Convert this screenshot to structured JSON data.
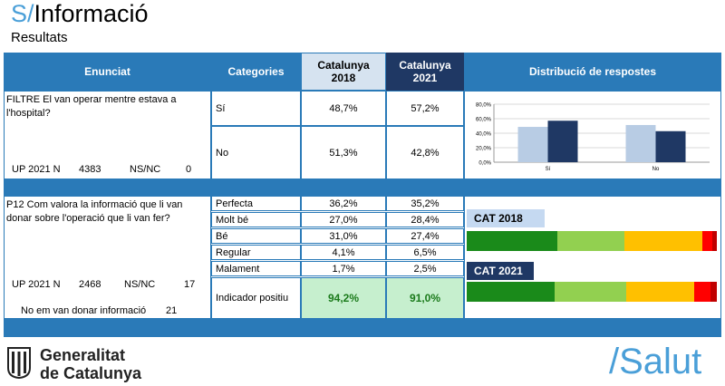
{
  "header": {
    "title_prefix": "S/",
    "title": "Informació",
    "subtitle": "Resultats"
  },
  "table": {
    "headers": {
      "enunciat": "Enunciat",
      "categories": "Categories",
      "col2018": "Catalunya 2018",
      "col2021": "Catalunya 2021",
      "distribucio": "Distribució de respostes"
    },
    "q1": {
      "question": "FILTRE El van operar mentre estava a l'hospital?",
      "up_label": "UP 2021 N",
      "up_value": "4383",
      "nsnc_label": "NS/NC",
      "nsnc_value": "0",
      "rows": [
        {
          "label": "Sí",
          "v2018": "48,7%",
          "v2021": "57,2%"
        },
        {
          "label": "No",
          "v2018": "51,3%",
          "v2021": "42,8%"
        }
      ]
    },
    "q2": {
      "question": "P12 Com valora la informació que li van donar sobre l'operació que li van fer?",
      "up_label": "UP 2021 N",
      "up_value": "2468",
      "nsnc_label": "NS/NC",
      "nsnc_value": "17",
      "extra_label": "No em van donar informació",
      "extra_value": "21",
      "rows": [
        {
          "label": "Perfecta",
          "v2018": "36,2%",
          "v2021": "35,2%"
        },
        {
          "label": "Molt bé",
          "v2018": "27,0%",
          "v2021": "28,4%"
        },
        {
          "label": "Bé",
          "v2018": "31,0%",
          "v2021": "27,4%"
        },
        {
          "label": "Regular",
          "v2018": "4,1%",
          "v2021": "6,5%"
        },
        {
          "label": "Malament",
          "v2018": "1,7%",
          "v2021": "2,5%"
        }
      ],
      "indicator": {
        "label": "Indicador positiu",
        "v2018": "94,2%",
        "v2021": "91,0%"
      }
    }
  },
  "chart_data": [
    {
      "type": "bar",
      "title": "",
      "categories": [
        "Sí",
        "No"
      ],
      "series": [
        {
          "name": "Catalunya 2018",
          "values": [
            48.7,
            51.3
          ],
          "color": "#b8cce4"
        },
        {
          "name": "Catalunya 2021",
          "values": [
            57.2,
            42.8
          ],
          "color": "#1f3864"
        }
      ],
      "ylim": [
        0,
        80
      ],
      "yticks": [
        "0,0%",
        "20,0%",
        "40,0%",
        "60,0%",
        "80,0%"
      ],
      "xlabel": "",
      "ylabel": ""
    },
    {
      "type": "bar",
      "stacked": true,
      "horizontal": true,
      "categories": [
        "Perfecta",
        "Molt bé",
        "Bé",
        "Regular",
        "Malament"
      ],
      "colors": [
        "#1a8a1a",
        "#92d050",
        "#ffc000",
        "#ff0000",
        "#c00000"
      ],
      "series": [
        {
          "name": "CAT 2018",
          "values": [
            36.2,
            27.0,
            31.0,
            4.1,
            1.7
          ]
        },
        {
          "name": "CAT 2021",
          "values": [
            35.2,
            28.4,
            27.4,
            6.5,
            2.5
          ]
        }
      ]
    }
  ],
  "footer": {
    "org_line1": "Generalitat",
    "org_line2": "de Catalunya",
    "brand": "/Salut"
  },
  "colors": {
    "header_blue": "#2a7ab8",
    "navy": "#1f3864",
    "light_blue": "#d6e3f0",
    "indicator_green": "#c6efce"
  }
}
